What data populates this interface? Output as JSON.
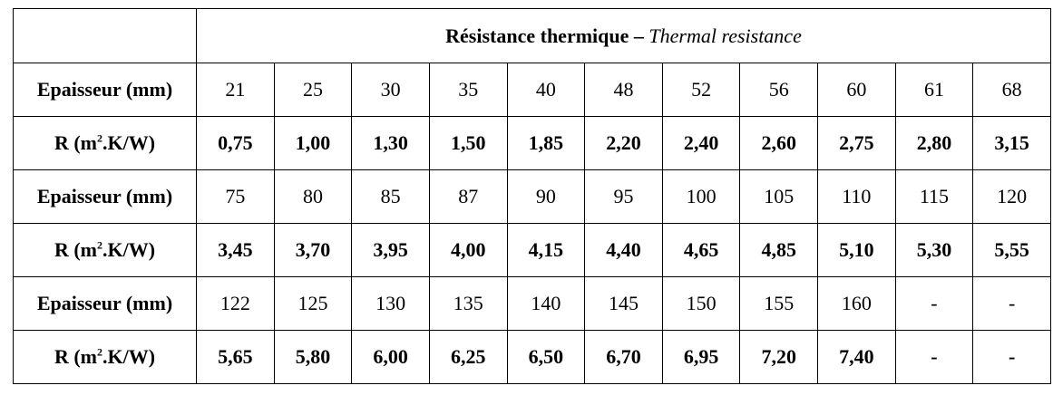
{
  "header": {
    "title_fr": "Résistance thermique –",
    "title_en": "Thermal resistance"
  },
  "labels": {
    "thickness": "Epaisseur (mm)",
    "r_prefix": "R (m",
    "r_sup": "2",
    "r_suffix": ".K/W)"
  },
  "groups": [
    {
      "thickness": [
        "21",
        "25",
        "30",
        "35",
        "40",
        "48",
        "52",
        "56",
        "60",
        "61",
        "68"
      ],
      "r": [
        "0,75",
        "1,00",
        "1,30",
        "1,50",
        "1,85",
        "2,20",
        "2,40",
        "2,60",
        "2,75",
        "2,80",
        "3,15"
      ]
    },
    {
      "thickness": [
        "75",
        "80",
        "85",
        "87",
        "90",
        "95",
        "100",
        "105",
        "110",
        "115",
        "120"
      ],
      "r": [
        "3,45",
        "3,70",
        "3,95",
        "4,00",
        "4,15",
        "4,40",
        "4,65",
        "4,85",
        "5,10",
        "5,30",
        "5,55"
      ]
    },
    {
      "thickness": [
        "122",
        "125",
        "130",
        "135",
        "140",
        "145",
        "150",
        "155",
        "160",
        "-",
        "-"
      ],
      "r": [
        "5,65",
        "5,80",
        "6,00",
        "6,25",
        "6,50",
        "6,70",
        "6,95",
        "7,20",
        "7,40",
        "-",
        "-"
      ]
    }
  ]
}
